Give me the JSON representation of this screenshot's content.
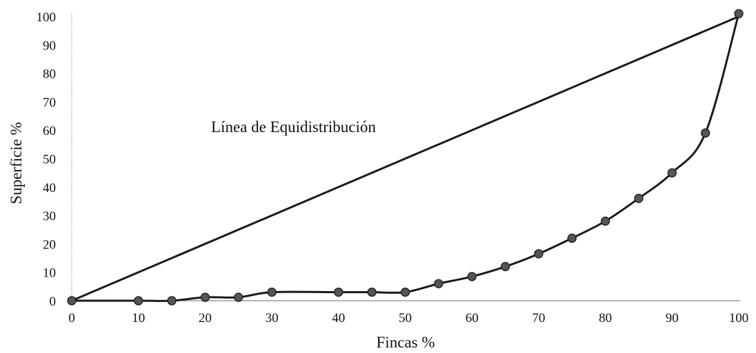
{
  "chart_data": {
    "type": "line",
    "title": "",
    "xlabel": "Fincas %",
    "ylabel": "Superficie %",
    "xlim": [
      0,
      100
    ],
    "ylim": [
      0,
      100
    ],
    "x_ticks": [
      "0",
      "10",
      "20",
      "30",
      "40",
      "50",
      "60",
      "70",
      "80",
      "90",
      "100"
    ],
    "y_ticks": [
      "0",
      "10",
      "20",
      "30",
      "40",
      "50",
      "60",
      "70",
      "80",
      "90",
      "100"
    ],
    "grid": false,
    "legend": "none",
    "annotation": "Línea de Equidistribución",
    "series": [
      {
        "role": "equidistribution",
        "x": [
          0,
          100
        ],
        "y": [
          0,
          100
        ],
        "markers": false
      },
      {
        "role": "lorenz",
        "x": [
          0,
          10,
          15,
          20,
          25,
          30,
          40,
          45,
          50,
          55,
          60,
          65,
          70,
          75,
          80,
          85,
          90,
          95,
          100
        ],
        "y": [
          0,
          0,
          0,
          1.2,
          1.2,
          3,
          3,
          3,
          3,
          6,
          8.5,
          12,
          16.5,
          22,
          28,
          36,
          45,
          59,
          101
        ],
        "markers": true
      }
    ],
    "colors": {
      "line": "#1a1a1a",
      "marker": "#555555",
      "axis": "#888888"
    }
  }
}
